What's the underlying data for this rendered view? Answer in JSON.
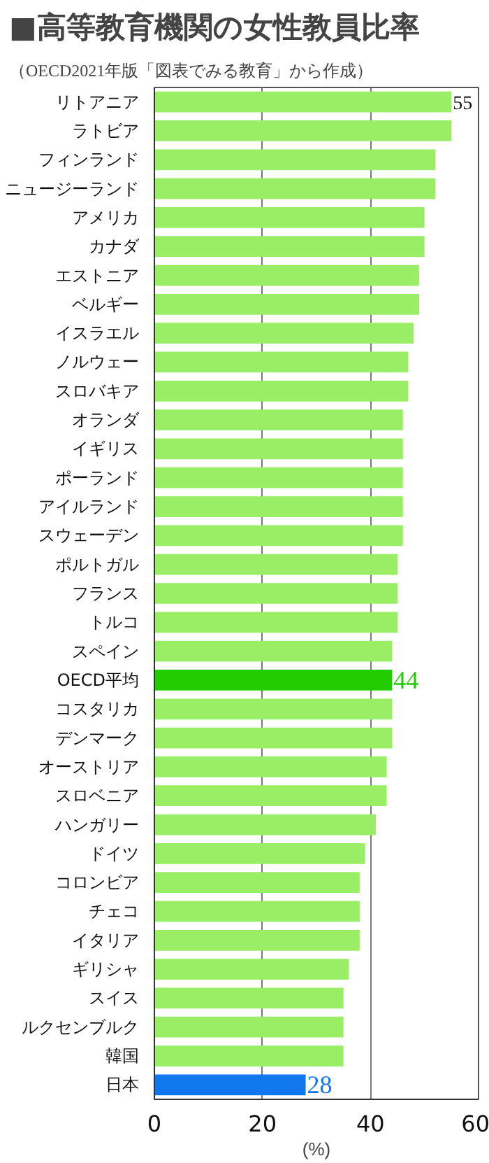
{
  "chart_data": {
    "type": "bar",
    "orientation": "horizontal",
    "title": "■高等教育機関の女性教員比率",
    "subtitle": "（OECD2021年版「図表でみる教育」から作成）",
    "xlabel": "(%)",
    "categories": [
      "リトアニア",
      "ラトビア",
      "フィンランド",
      "ニュージーランド",
      "アメリカ",
      "カナダ",
      "エストニア",
      "ベルギー",
      "イスラエル",
      "ノルウェー",
      "スロバキア",
      "オランダ",
      "イギリス",
      "ポーランド",
      "アイルランド",
      "スウェーデン",
      "ポルトガル",
      "フランス",
      "トルコ",
      "スペイン",
      "OECD平均",
      "コスタリカ",
      "デンマーク",
      "オーストリア",
      "スロベニア",
      "ハンガリー",
      "ドイツ",
      "コロンビア",
      "チェコ",
      "イタリア",
      "ギリシャ",
      "スイス",
      "ルクセンブルク",
      "韓国",
      "日本"
    ],
    "values": [
      55,
      55,
      52,
      52,
      50,
      50,
      49,
      49,
      48,
      47,
      47,
      46,
      46,
      46,
      46,
      46,
      45,
      45,
      45,
      44,
      44,
      44,
      44,
      43,
      43,
      41,
      39,
      38,
      38,
      38,
      36,
      35,
      35,
      35,
      28
    ],
    "colors": [
      "#99ee66",
      "#99ee66",
      "#99ee66",
      "#99ee66",
      "#99ee66",
      "#99ee66",
      "#99ee66",
      "#99ee66",
      "#99ee66",
      "#99ee66",
      "#99ee66",
      "#99ee66",
      "#99ee66",
      "#99ee66",
      "#99ee66",
      "#99ee66",
      "#99ee66",
      "#99ee66",
      "#99ee66",
      "#99ee66",
      "#22cc00",
      "#99ee66",
      "#99ee66",
      "#99ee66",
      "#99ee66",
      "#99ee66",
      "#99ee66",
      "#99ee66",
      "#99ee66",
      "#99ee66",
      "#99ee66",
      "#99ee66",
      "#99ee66",
      "#99ee66",
      "#1177ee"
    ],
    "value_labels": [
      "55",
      null,
      null,
      null,
      null,
      null,
      null,
      null,
      null,
      null,
      null,
      null,
      null,
      null,
      null,
      null,
      null,
      null,
      null,
      null,
      "44",
      null,
      null,
      null,
      null,
      null,
      null,
      null,
      null,
      null,
      null,
      null,
      null,
      null,
      "28"
    ],
    "xlim": [
      0,
      60
    ],
    "xticks": [
      0,
      20,
      40,
      60
    ],
    "grid": "x"
  }
}
